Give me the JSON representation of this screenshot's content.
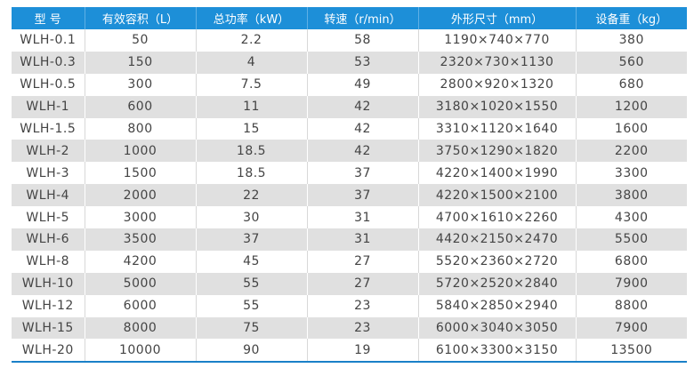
{
  "table": {
    "headers": [
      "型 号",
      "有效容积（L）",
      "总功率（kW）",
      "转速（r/min）",
      "外形尺寸（mm）",
      "设备重（kg）"
    ],
    "rows": [
      [
        "WLH-0.1",
        "50",
        "2.2",
        "58",
        "1190×740×770",
        "380"
      ],
      [
        "WLH-0.3",
        "150",
        "4",
        "53",
        "2320×730×1130",
        "560"
      ],
      [
        "WLH-0.5",
        "300",
        "7.5",
        "49",
        "2800×920×1320",
        "680"
      ],
      [
        "WLH-1",
        "600",
        "11",
        "42",
        "3180×1020×1550",
        "1200"
      ],
      [
        "WLH-1.5",
        "800",
        "15",
        "42",
        "3310×1120×1640",
        "1600"
      ],
      [
        "WLH-2",
        "1000",
        "18.5",
        "42",
        "3750×1290×1820",
        "2200"
      ],
      [
        "WLH-3",
        "1500",
        "18.5",
        "37",
        "4220×1400×1990",
        "3300"
      ],
      [
        "WLH-4",
        "2000",
        "22",
        "37",
        "4220×1500×2100",
        "3800"
      ],
      [
        "WLH-5",
        "3000",
        "30",
        "31",
        "4700×1610×2260",
        "4300"
      ],
      [
        "WLH-6",
        "3500",
        "37",
        "31",
        "4420×2150×2470",
        "5500"
      ],
      [
        "WLH-8",
        "4200",
        "45",
        "27",
        "5520×2360×2720",
        "6800"
      ],
      [
        "WLH-10",
        "5000",
        "55",
        "27",
        "5720×2520×2840",
        "7900"
      ],
      [
        "WLH-12",
        "6000",
        "55",
        "23",
        "5840×2850×2940",
        "8800"
      ],
      [
        "WLH-15",
        "8000",
        "75",
        "23",
        "6000×3040×3050",
        "7900"
      ],
      [
        "WLH-20",
        "10000",
        "90",
        "19",
        "6100×3300×3150",
        "13500"
      ]
    ]
  },
  "colors": {
    "header": "#1d8fd8",
    "alt_row": "#e0e0e0"
  }
}
